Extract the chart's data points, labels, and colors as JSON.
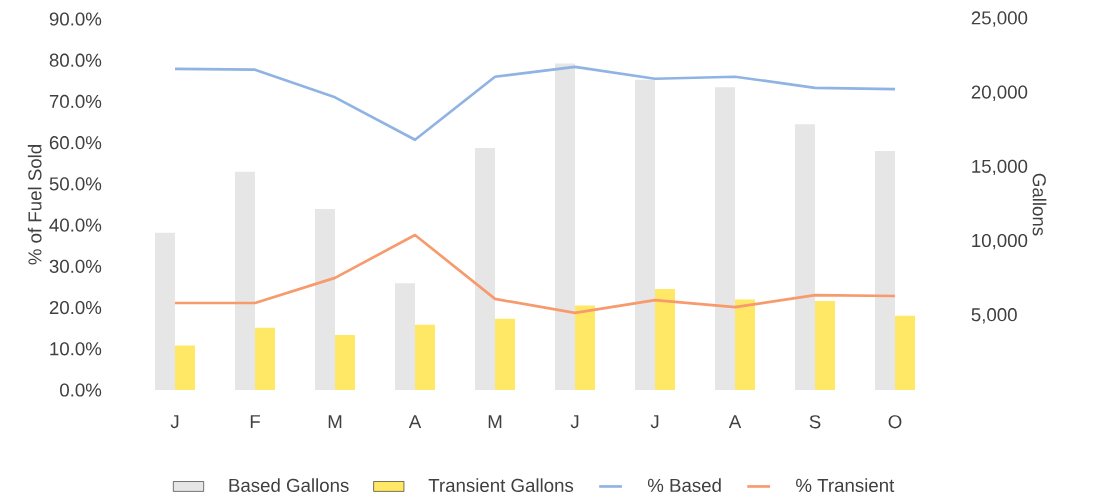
{
  "chart_data": {
    "type": "bar",
    "categories": [
      "J",
      "F",
      "M",
      "A",
      "M",
      "J",
      "J",
      "A",
      "S",
      "O"
    ],
    "ylabel": "% of Fuel Sold",
    "y2label": "Gallons",
    "legend": "bottom",
    "grid": false,
    "ylim": [
      0,
      90
    ],
    "yticks": [
      {
        "value": 0,
        "label": "0.0%"
      },
      {
        "value": 10,
        "label": "10.0%"
      },
      {
        "value": 20,
        "label": "20.0%"
      },
      {
        "value": 30,
        "label": "30.0%"
      },
      {
        "value": 40,
        "label": "40.0%"
      },
      {
        "value": 50,
        "label": "50.0%"
      },
      {
        "value": 60,
        "label": "60.0%"
      },
      {
        "value": 70,
        "label": "70.0%"
      },
      {
        "value": 80,
        "label": "80.0%"
      },
      {
        "value": 90,
        "label": "90.0%"
      }
    ],
    "y2lim": [
      0,
      25000
    ],
    "y2ticks": [
      {
        "value": 5000,
        "label": "5,000"
      },
      {
        "value": 10000,
        "label": "10,000"
      },
      {
        "value": 15000,
        "label": "15,000"
      },
      {
        "value": 20000,
        "label": "20,000"
      },
      {
        "value": 25000,
        "label": "25,000"
      }
    ],
    "series": [
      {
        "name": "Based Gallons",
        "axis": "y2",
        "color": "#e6e6e6",
        "values": [
          10600,
          14700,
          12200,
          7200,
          16300,
          22000,
          20900,
          20400,
          17900,
          16100
        ]
      },
      {
        "name": "Transient Gallons",
        "axis": "y2",
        "color": "#ffe866",
        "values": [
          3000,
          4200,
          3700,
          4400,
          4800,
          5700,
          6800,
          6100,
          6000,
          5000
        ]
      },
      {
        "name": "% Based",
        "type": "line",
        "axis": "y",
        "color": "#8fb4e3",
        "values": [
          77.9,
          77.7,
          71,
          60.7,
          76,
          78.4,
          75.5,
          76,
          73.3,
          73
        ]
      },
      {
        "name": "% Transient",
        "type": "line",
        "axis": "y",
        "color": "#f79a6e",
        "values": [
          21.1,
          21.1,
          27.2,
          37.6,
          22.1,
          18.7,
          21.8,
          20.1,
          23,
          22.8
        ]
      }
    ]
  }
}
